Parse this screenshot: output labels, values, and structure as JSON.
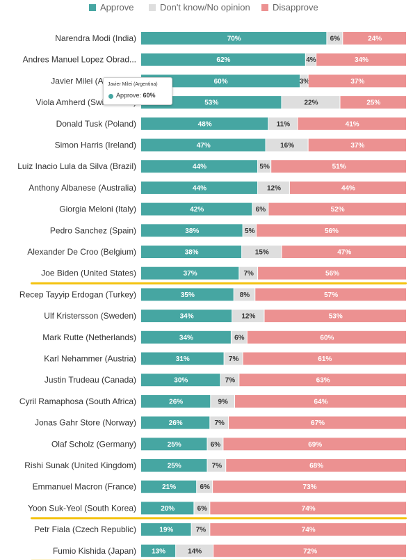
{
  "legend": {
    "items": [
      {
        "label": "Approve",
        "color": "#46a6a2"
      },
      {
        "label": "Don't know/No opinion",
        "color": "#dedede"
      },
      {
        "label": "Disapprove",
        "color": "#ec9191"
      }
    ]
  },
  "colors": {
    "approve": "#46a6a2",
    "neutral": "#dedede",
    "disapprove": "#ec9191",
    "highlight": "#f4c20d"
  },
  "tooltip": {
    "title": "Javier Milei (Argentina)",
    "series": "Approve",
    "value": "60%"
  },
  "chart_data": {
    "type": "bar",
    "orientation": "horizontal",
    "stacked": true,
    "categories": [
      "Narendra Modi (India)",
      "Andres Manuel Lopez Obrad...",
      "Javier Milei (Argentina)",
      "Viola Amherd (Switzerland)",
      "Donald Tusk (Poland)",
      "Simon Harris (Ireland)",
      "Luiz Inacio Lula da Silva (Brazil)",
      "Anthony Albanese (Australia)",
      "Giorgia Meloni (Italy)",
      "Pedro Sanchez (Spain)",
      "Alexander De Croo (Belgium)",
      "Joe Biden (United States)",
      "Recep Tayyip Erdogan (Turkey)",
      "Ulf Kristersson (Sweden)",
      "Mark Rutte (Netherlands)",
      "Karl Nehammer (Austria)",
      "Justin Trudeau (Canada)",
      "Cyril Ramaphosa (South Africa)",
      "Jonas Gahr Store (Norway)",
      "Olaf Scholz (Germany)",
      "Rishi Sunak (United Kingdom)",
      "Emmanuel Macron (France)",
      "Yoon Suk-Yeol (South Korea)",
      "Petr Fiala (Czech Republic)",
      "Fumio Kishida (Japan)"
    ],
    "series": [
      {
        "name": "Approve",
        "values": [
          70,
          62,
          60,
          53,
          48,
          47,
          44,
          44,
          42,
          38,
          38,
          37,
          35,
          34,
          34,
          31,
          30,
          26,
          26,
          25,
          25,
          21,
          20,
          19,
          13
        ]
      },
      {
        "name": "Don't know/No opinion",
        "values": [
          6,
          4,
          3,
          22,
          11,
          16,
          5,
          12,
          6,
          5,
          15,
          7,
          8,
          12,
          6,
          7,
          7,
          9,
          7,
          6,
          7,
          6,
          6,
          7,
          14
        ]
      },
      {
        "name": "Disapprove",
        "values": [
          24,
          34,
          37,
          25,
          41,
          37,
          51,
          44,
          52,
          56,
          47,
          56,
          57,
          53,
          60,
          61,
          63,
          64,
          67,
          69,
          68,
          73,
          74,
          74,
          72
        ]
      }
    ],
    "xlim": [
      0,
      100
    ],
    "value_suffix": "%",
    "highlighted": [
      "Joe Biden (United States)",
      "Yoon Suk-Yeol (South Korea)",
      "Fumio Kishida (Japan)"
    ],
    "legend_position": "top",
    "grid": false
  }
}
